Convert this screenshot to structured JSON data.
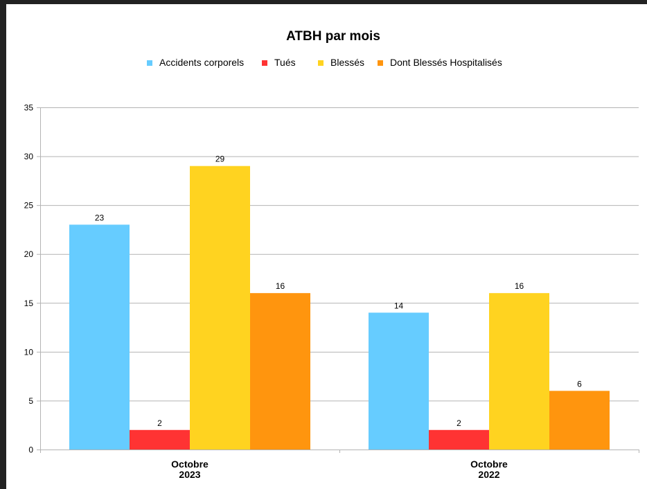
{
  "chart_data": {
    "type": "bar",
    "title": "ATBH par mois",
    "categories": [
      [
        "Octobre",
        "2023"
      ],
      [
        "Octobre",
        "2022"
      ]
    ],
    "series": [
      {
        "name": "Accidents corporels",
        "color": "#66ccff",
        "values": [
          23,
          14
        ]
      },
      {
        "name": "Tués",
        "color": "#ff3333",
        "values": [
          2,
          2
        ]
      },
      {
        "name": "Blessés",
        "color": "#ffd320",
        "values": [
          29,
          16
        ]
      },
      {
        "name": "Dont Blessés Hospitalisés",
        "color": "#ff950e",
        "values": [
          16,
          6
        ]
      }
    ],
    "xlabel": "",
    "ylabel": "",
    "ylim": [
      0,
      35
    ],
    "yticks": [
      0,
      5,
      10,
      15,
      20,
      25,
      30,
      35
    ],
    "grid": true,
    "legend_position": "top",
    "data_labels": true
  }
}
